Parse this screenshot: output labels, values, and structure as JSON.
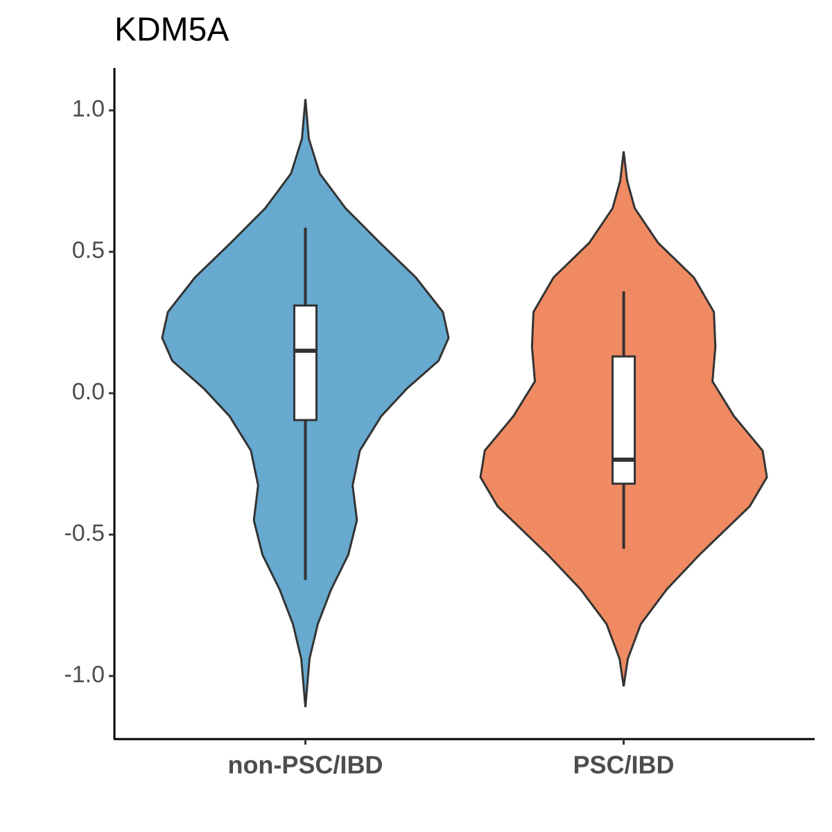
{
  "chart_data": {
    "type": "violin",
    "title": "KDM5A",
    "categories": [
      "non-PSC/IBD",
      "PSC/IBD"
    ],
    "groups": [
      {
        "color": "#67a9cf",
        "violin": {
          "y": [
            1.04,
            0.9,
            0.777,
            0.654,
            0.532,
            0.41,
            0.287,
            0.196,
            0.115,
            0.017,
            -0.081,
            -0.203,
            -0.326,
            -0.449,
            -0.571,
            -0.694,
            -0.816,
            -0.939,
            -1.11
          ],
          "density": [
            0,
            0.024,
            0.1,
            0.28,
            0.52,
            0.77,
            0.96,
            1,
            0.93,
            0.71,
            0.53,
            0.38,
            0.33,
            0.36,
            0.3,
            0.18,
            0.087,
            0.029,
            0
          ]
        },
        "box": {
          "low": -0.66,
          "q1": -0.095,
          "median": 0.15,
          "q3": 0.31,
          "high": 0.585
        }
      },
      {
        "color": "#ef8a62",
        "violin": {
          "y": [
            0.855,
            0.752,
            0.654,
            0.532,
            0.409,
            0.287,
            0.164,
            0.042,
            -0.081,
            -0.203,
            -0.297,
            -0.4,
            -0.571,
            -0.694,
            -0.816,
            -0.939,
            -1.037
          ],
          "density": [
            0,
            0.024,
            0.077,
            0.24,
            0.49,
            0.63,
            0.64,
            0.62,
            0.77,
            0.97,
            1,
            0.88,
            0.53,
            0.3,
            0.12,
            0.029,
            0
          ]
        },
        "box": {
          "low": -0.55,
          "q1": -0.32,
          "median": -0.235,
          "q3": 0.13,
          "high": 0.36
        }
      }
    ],
    "ylim": [
      -1.223,
      1.15
    ],
    "yticks": [
      {
        "value": -1,
        "label": "-1.0"
      },
      -0.5,
      {
        "value": 0,
        "label": "0.0"
      },
      0.5,
      {
        "value": 1,
        "label": "1.0"
      }
    ],
    "grid": false
  }
}
